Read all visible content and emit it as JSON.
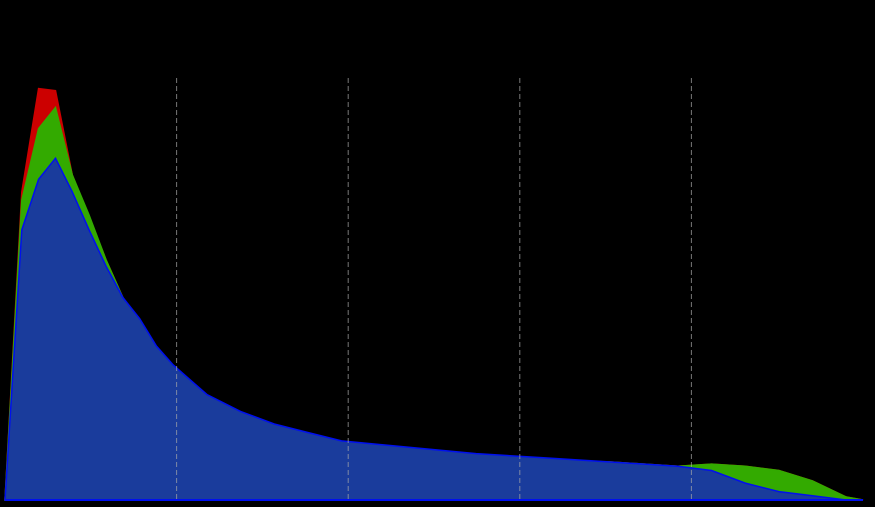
{
  "chart_data": {
    "type": "area",
    "x": [
      0,
      5,
      10,
      15,
      20,
      25,
      30,
      35,
      40,
      45,
      50,
      60,
      70,
      80,
      90,
      100,
      120,
      140,
      160,
      180,
      200,
      210,
      220,
      230,
      240,
      250,
      255
    ],
    "series": [
      {
        "color": "#cc0000",
        "values": [
          0,
          73,
          97.5,
          97,
          77,
          67,
          57,
          48,
          41.5,
          35.5,
          30,
          24,
          19.5,
          17,
          15,
          13.5,
          12,
          10.5,
          9.5,
          9,
          8,
          8.5,
          8,
          7,
          4.5,
          0.7,
          0
        ]
      },
      {
        "color": "#33aa00",
        "values": [
          0,
          71,
          88,
          93,
          77,
          67.5,
          57,
          48,
          41.5,
          35.5,
          30,
          24,
          19.5,
          17,
          15,
          13.5,
          12,
          10.5,
          9.5,
          9,
          8,
          8.5,
          8,
          7,
          4.5,
          0.7,
          0
        ]
      },
      {
        "color": "#1a3c9c",
        "values": [
          0,
          64,
          76,
          81,
          73,
          64,
          55.5,
          48,
          43,
          36.5,
          32,
          25,
          21,
          18,
          16,
          14,
          12.5,
          11,
          10,
          9,
          8,
          7,
          4,
          2,
          1,
          0,
          0
        ]
      }
    ],
    "xlim": [
      0,
      255
    ],
    "ylim": [
      0,
      100
    ],
    "xticks": [
      51,
      102,
      153,
      204
    ],
    "grid": true
  }
}
